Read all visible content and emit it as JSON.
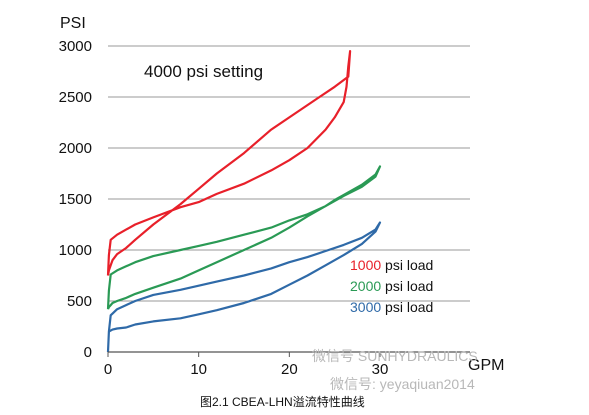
{
  "chart_data": {
    "type": "line",
    "ylabel": "PSI",
    "xlabel": "GPM",
    "annotation": "4000 psi setting",
    "xlim": [
      0,
      30
    ],
    "ylim": [
      0,
      3000
    ],
    "xticks": [
      "0",
      "10",
      "20",
      "30"
    ],
    "yticks": [
      "0",
      "500",
      "1000",
      "1500",
      "2000",
      "2500",
      "3000"
    ],
    "grid": "horizontal",
    "legend_position": "right",
    "series": [
      {
        "name": "1000 psi load",
        "load_value": "1000",
        "color": "#e8202a",
        "x": [
          0,
          0.1,
          0.3,
          1,
          2,
          3,
          5,
          8,
          10,
          12,
          15,
          18,
          20,
          22,
          24,
          25,
          26,
          26.3,
          26.5,
          26.7,
          26.5,
          25,
          23,
          20,
          18,
          15,
          12,
          10,
          8,
          5,
          3,
          2,
          1,
          0.5,
          0.3,
          0.1,
          0
        ],
        "y": [
          750,
          950,
          1100,
          1150,
          1200,
          1250,
          1320,
          1420,
          1470,
          1550,
          1650,
          1780,
          1880,
          2000,
          2180,
          2300,
          2450,
          2600,
          2800,
          2950,
          2700,
          2600,
          2480,
          2300,
          2180,
          1950,
          1750,
          1600,
          1450,
          1250,
          1100,
          1020,
          960,
          900,
          850,
          800,
          750
        ]
      },
      {
        "name": "2000 psi load",
        "load_value": "2000",
        "color": "#2a9a55",
        "x": [
          0,
          0.1,
          0.3,
          1,
          2,
          3,
          5,
          8,
          10,
          12,
          15,
          18,
          20,
          22,
          24,
          25,
          26,
          28,
          29.5,
          30,
          29.5,
          28,
          26,
          24,
          22,
          20,
          18,
          15,
          12,
          10,
          8,
          5,
          3,
          2,
          1,
          0.5,
          0.3,
          0.1,
          0
        ],
        "y": [
          420,
          600,
          760,
          800,
          840,
          880,
          940,
          1000,
          1040,
          1080,
          1150,
          1220,
          1290,
          1350,
          1430,
          1490,
          1540,
          1640,
          1740,
          1820,
          1720,
          1620,
          1530,
          1430,
          1330,
          1220,
          1120,
          1000,
          880,
          800,
          720,
          630,
          570,
          530,
          500,
          480,
          460,
          440,
          420
        ]
      },
      {
        "name": "3000 psi load",
        "load_value": "3000",
        "color": "#2f6aa8",
        "x": [
          0,
          0.1,
          0.3,
          1,
          2,
          3,
          5,
          8,
          10,
          12,
          15,
          18,
          20,
          22,
          24,
          26,
          28,
          29.5,
          30,
          29.5,
          28,
          26,
          24,
          22,
          20,
          18,
          15,
          12,
          10,
          8,
          5,
          3,
          2,
          1,
          0.5,
          0.3,
          0.1,
          0
        ],
        "y": [
          0,
          200,
          360,
          420,
          460,
          500,
          560,
          610,
          650,
          690,
          750,
          820,
          880,
          930,
          990,
          1050,
          1120,
          1200,
          1270,
          1180,
          1060,
          950,
          850,
          750,
          660,
          570,
          480,
          410,
          370,
          330,
          300,
          270,
          240,
          230,
          220,
          210,
          200,
          0
        ]
      }
    ],
    "legend_suffix": " psi load"
  },
  "caption": "图2.1 CBEA-LHN溢流特性曲线",
  "watermark": {
    "line1": "微信号 SUNHYDRAULICS",
    "line2": "微信号: yeyaqiuan2014"
  }
}
